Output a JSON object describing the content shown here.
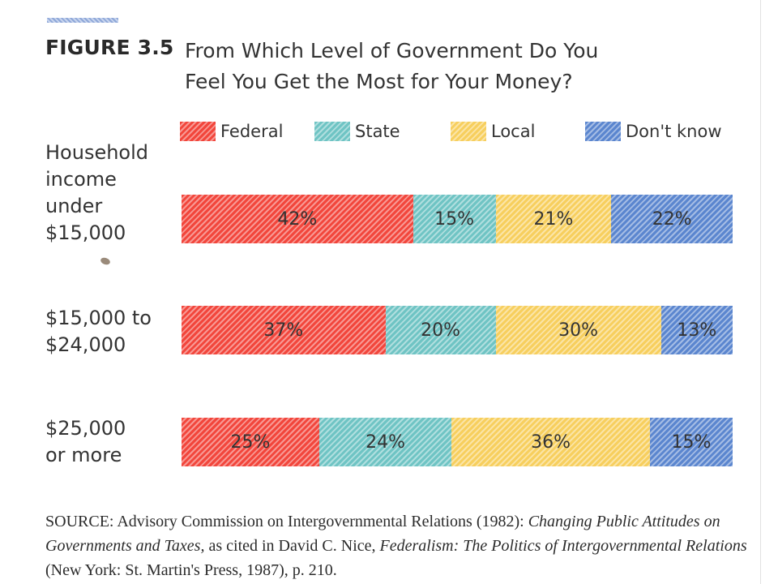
{
  "figure": {
    "label": "FIGURE 3.5",
    "title_line1": "From Which Level of Government Do You",
    "title_line2": "Feel You Get the Most for Your Money?"
  },
  "legend": [
    {
      "name": "Federal",
      "color": "#f2463c"
    },
    {
      "name": "State",
      "color": "#6fc4c4"
    },
    {
      "name": "Local",
      "color": "#f7cf5e"
    },
    {
      "name": "Don't know",
      "color": "#5b86cf"
    }
  ],
  "chart_data": {
    "type": "bar",
    "orientation": "horizontal",
    "stacked": true,
    "categories": [
      [
        "Household",
        "income",
        "under",
        "$15,000"
      ],
      [
        "$15,000 to",
        "$24,000"
      ],
      [
        "$25,000",
        "or more"
      ]
    ],
    "series": [
      {
        "name": "Federal",
        "values": [
          42,
          37,
          25
        ],
        "labels": [
          "42%",
          "37%",
          "25%"
        ]
      },
      {
        "name": "State",
        "values": [
          15,
          20,
          24
        ],
        "labels": [
          "15%",
          "20%",
          "24%"
        ]
      },
      {
        "name": "Local",
        "values": [
          21,
          30,
          36
        ],
        "labels": [
          "21%",
          "30%",
          "36%"
        ]
      },
      {
        "name": "Don't know",
        "values": [
          22,
          13,
          15
        ],
        "labels": [
          "22%",
          "13%",
          "15%"
        ]
      }
    ],
    "xlim": [
      0,
      100
    ],
    "unit": "%",
    "legend_position": "top",
    "grid": false
  },
  "source": {
    "p1": "SOURCE: Advisory Commission on Intergovernmental Relations (1982): ",
    "p2": "Changing Public Attitudes on Governments and Taxes,",
    "p3": " as cited in David C. Nice, ",
    "p4": "Federalism: The Politics of Intergovernmental Relations",
    "p5": " (New York: St. Martin's Press, 1987), p. 210."
  }
}
